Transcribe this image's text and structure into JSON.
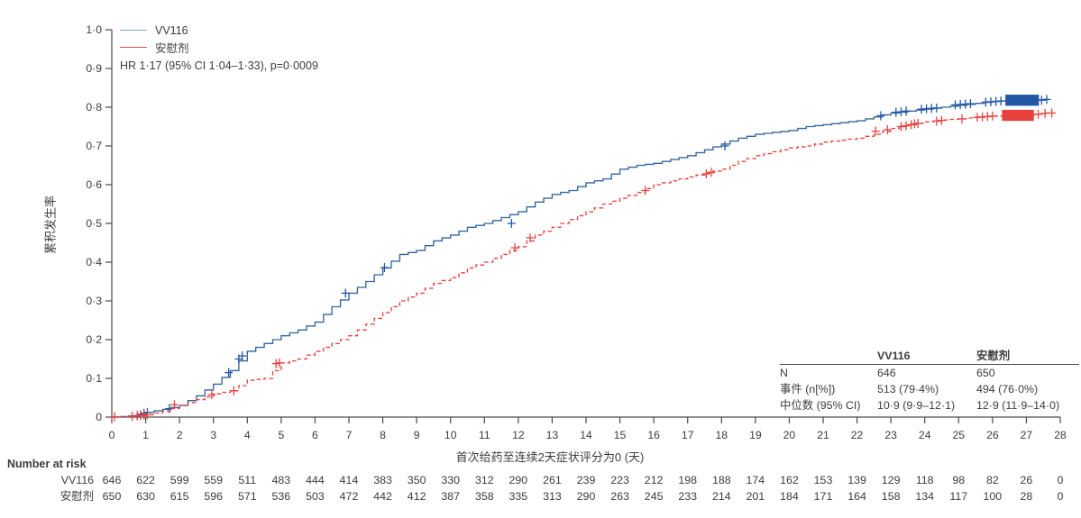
{
  "colors": {
    "vv116_line": "#33669e",
    "vv116_censor": "#2257a5",
    "placebo_line": "#e8423e",
    "legend_blue": "#7aa3cc",
    "legend_red": "#f0504b",
    "axis": "#4a4a4a",
    "text": "#3c3c3c"
  },
  "legend": {
    "series": [
      {
        "label": "VV116"
      },
      {
        "label": "安慰剂"
      }
    ],
    "hr_text": "HR 1·17 (95% CI 1·04–1·33), p=0·0009"
  },
  "axes": {
    "y_label": "累积发生率",
    "x_label": "首次给药至连续2天症状评分为0 (天)",
    "y_ticks": [
      "0",
      "0·1",
      "0·2",
      "0·3",
      "0·4",
      "0·5",
      "0·6",
      "0·7",
      "0·8",
      "0·9",
      "1·0"
    ],
    "x_ticks": [
      0,
      1,
      2,
      3,
      4,
      5,
      6,
      7,
      8,
      9,
      10,
      11,
      12,
      13,
      14,
      15,
      16,
      17,
      18,
      19,
      20,
      21,
      22,
      23,
      24,
      25,
      26,
      27,
      28
    ]
  },
  "inset_table": {
    "columns": [
      "",
      "VV116",
      "安慰剂"
    ],
    "rows": [
      [
        "N",
        "646",
        "650"
      ],
      [
        "事件 (n[%])",
        "513 (79·4%)",
        "494 (76·0%)"
      ],
      [
        "中位数 (95% CI)",
        "10·9 (9·9–12·1)",
        "12·9 (11·9–14·0)"
      ]
    ]
  },
  "number_at_risk": {
    "title": "Number at risk",
    "rows": [
      {
        "label": "VV116",
        "values": [
          646,
          622,
          599,
          559,
          511,
          483,
          444,
          414,
          383,
          350,
          330,
          312,
          290,
          261,
          239,
          223,
          212,
          198,
          188,
          174,
          162,
          153,
          139,
          129,
          118,
          98,
          82,
          26,
          0
        ]
      },
      {
        "label": "安慰剂",
        "values": [
          650,
          630,
          615,
          596,
          571,
          536,
          503,
          472,
          442,
          412,
          387,
          358,
          335,
          313,
          290,
          263,
          245,
          233,
          214,
          201,
          184,
          171,
          164,
          158,
          134,
          117,
          100,
          28,
          0
        ]
      }
    ]
  },
  "chart_data": {
    "type": "line",
    "subtype": "kaplan-meier-cumulative-incidence",
    "title": "",
    "xlabel": "首次给药至连续2天症状评分为0 (天)",
    "ylabel": "累积发生率",
    "xlim": [
      0,
      28
    ],
    "ylim": [
      0,
      1.0
    ],
    "grid": false,
    "legend_position": "top-left",
    "annotation": "HR 1·17 (95% CI 1·04–1·33), p=0·0009",
    "x": [
      0,
      0.5,
      1,
      1.5,
      2,
      2.5,
      3,
      3.5,
      4,
      4.5,
      5,
      5.5,
      6,
      6.5,
      7,
      7.5,
      8,
      8.5,
      9,
      9.5,
      10,
      10.5,
      11,
      11.5,
      12,
      12.5,
      13,
      13.5,
      14,
      14.5,
      15,
      15.5,
      16,
      16.5,
      17,
      17.5,
      18,
      18.5,
      19,
      19.5,
      20,
      20.5,
      21,
      21.5,
      22,
      22.5,
      23,
      23.5,
      24,
      24.5,
      25,
      25.5,
      26,
      26.5,
      27,
      27.5
    ],
    "series": [
      {
        "name": "VV116",
        "style": "solid",
        "color": "#33669e",
        "end_day": 27.65,
        "values": [
          0,
          0.003,
          0.012,
          0.02,
          0.03,
          0.055,
          0.085,
          0.12,
          0.17,
          0.19,
          0.21,
          0.225,
          0.245,
          0.285,
          0.32,
          0.35,
          0.385,
          0.42,
          0.43,
          0.455,
          0.47,
          0.49,
          0.5,
          0.515,
          0.53,
          0.555,
          0.575,
          0.585,
          0.605,
          0.615,
          0.64,
          0.65,
          0.655,
          0.665,
          0.675,
          0.69,
          0.705,
          0.72,
          0.73,
          0.735,
          0.74,
          0.75,
          0.755,
          0.76,
          0.765,
          0.775,
          0.785,
          0.79,
          0.795,
          0.8,
          0.805,
          0.81,
          0.815,
          0.817,
          0.818,
          0.82
        ],
        "censors": [
          [
            0.75,
            0.004
          ],
          [
            0.85,
            0.006
          ],
          [
            0.95,
            0.01
          ],
          [
            1.05,
            0.012
          ],
          [
            1.7,
            0.022
          ],
          [
            3.45,
            0.115
          ],
          [
            3.75,
            0.15
          ],
          [
            3.85,
            0.158
          ],
          [
            6.9,
            0.32
          ],
          [
            8.05,
            0.386
          ],
          [
            11.8,
            0.5
          ],
          [
            18.1,
            0.7
          ],
          [
            22.7,
            0.778
          ],
          [
            23.15,
            0.787
          ],
          [
            23.3,
            0.788
          ],
          [
            23.45,
            0.79
          ],
          [
            23.9,
            0.795
          ],
          [
            24.05,
            0.796
          ],
          [
            24.2,
            0.797
          ],
          [
            24.35,
            0.798
          ],
          [
            24.9,
            0.806
          ],
          [
            25.05,
            0.807
          ],
          [
            25.2,
            0.808
          ],
          [
            25.35,
            0.809
          ],
          [
            25.8,
            0.813
          ],
          [
            25.95,
            0.814
          ],
          [
            26.1,
            0.815
          ],
          [
            26.25,
            0.816
          ],
          [
            27.45,
            0.818
          ],
          [
            27.6,
            0.82
          ]
        ],
        "censor_blocks": [
          [
            26.45,
            27.0,
            0.818
          ],
          [
            27.05,
            27.3,
            0.818
          ]
        ]
      },
      {
        "name": "安慰剂",
        "style": "dashed",
        "color": "#e8423e",
        "end_day": 27.8,
        "values": [
          0,
          0.002,
          0.006,
          0.015,
          0.03,
          0.045,
          0.06,
          0.068,
          0.095,
          0.1,
          0.14,
          0.15,
          0.17,
          0.19,
          0.21,
          0.24,
          0.27,
          0.3,
          0.32,
          0.345,
          0.36,
          0.385,
          0.4,
          0.42,
          0.44,
          0.47,
          0.49,
          0.51,
          0.53,
          0.55,
          0.565,
          0.58,
          0.6,
          0.61,
          0.62,
          0.63,
          0.64,
          0.66,
          0.675,
          0.685,
          0.695,
          0.7,
          0.71,
          0.715,
          0.72,
          0.73,
          0.745,
          0.755,
          0.762,
          0.767,
          0.77,
          0.774,
          0.777,
          0.779,
          0.78,
          0.785
        ],
        "censors": [
          [
            0.08,
            0.001
          ],
          [
            0.6,
            0.002
          ],
          [
            0.75,
            0.003
          ],
          [
            0.85,
            0.004
          ],
          [
            0.95,
            0.005
          ],
          [
            1.05,
            0.006
          ],
          [
            1.85,
            0.032
          ],
          [
            2.95,
            0.058
          ],
          [
            3.6,
            0.068
          ],
          [
            4.85,
            0.138
          ],
          [
            4.95,
            0.14
          ],
          [
            11.9,
            0.437
          ],
          [
            12.35,
            0.463
          ],
          [
            15.75,
            0.585
          ],
          [
            17.55,
            0.628
          ],
          [
            17.7,
            0.632
          ],
          [
            22.55,
            0.738
          ],
          [
            22.9,
            0.742
          ],
          [
            23.3,
            0.75
          ],
          [
            23.45,
            0.752
          ],
          [
            23.6,
            0.755
          ],
          [
            23.7,
            0.757
          ],
          [
            23.8,
            0.758
          ],
          [
            24.35,
            0.764
          ],
          [
            24.5,
            0.766
          ],
          [
            25.1,
            0.77
          ],
          [
            25.55,
            0.774
          ],
          [
            25.7,
            0.775
          ],
          [
            25.85,
            0.776
          ],
          [
            26.0,
            0.777
          ],
          [
            27.35,
            0.782
          ],
          [
            27.55,
            0.784
          ],
          [
            27.75,
            0.785
          ]
        ],
        "censor_blocks": [
          [
            26.35,
            27.15,
            0.779
          ]
        ]
      }
    ]
  }
}
